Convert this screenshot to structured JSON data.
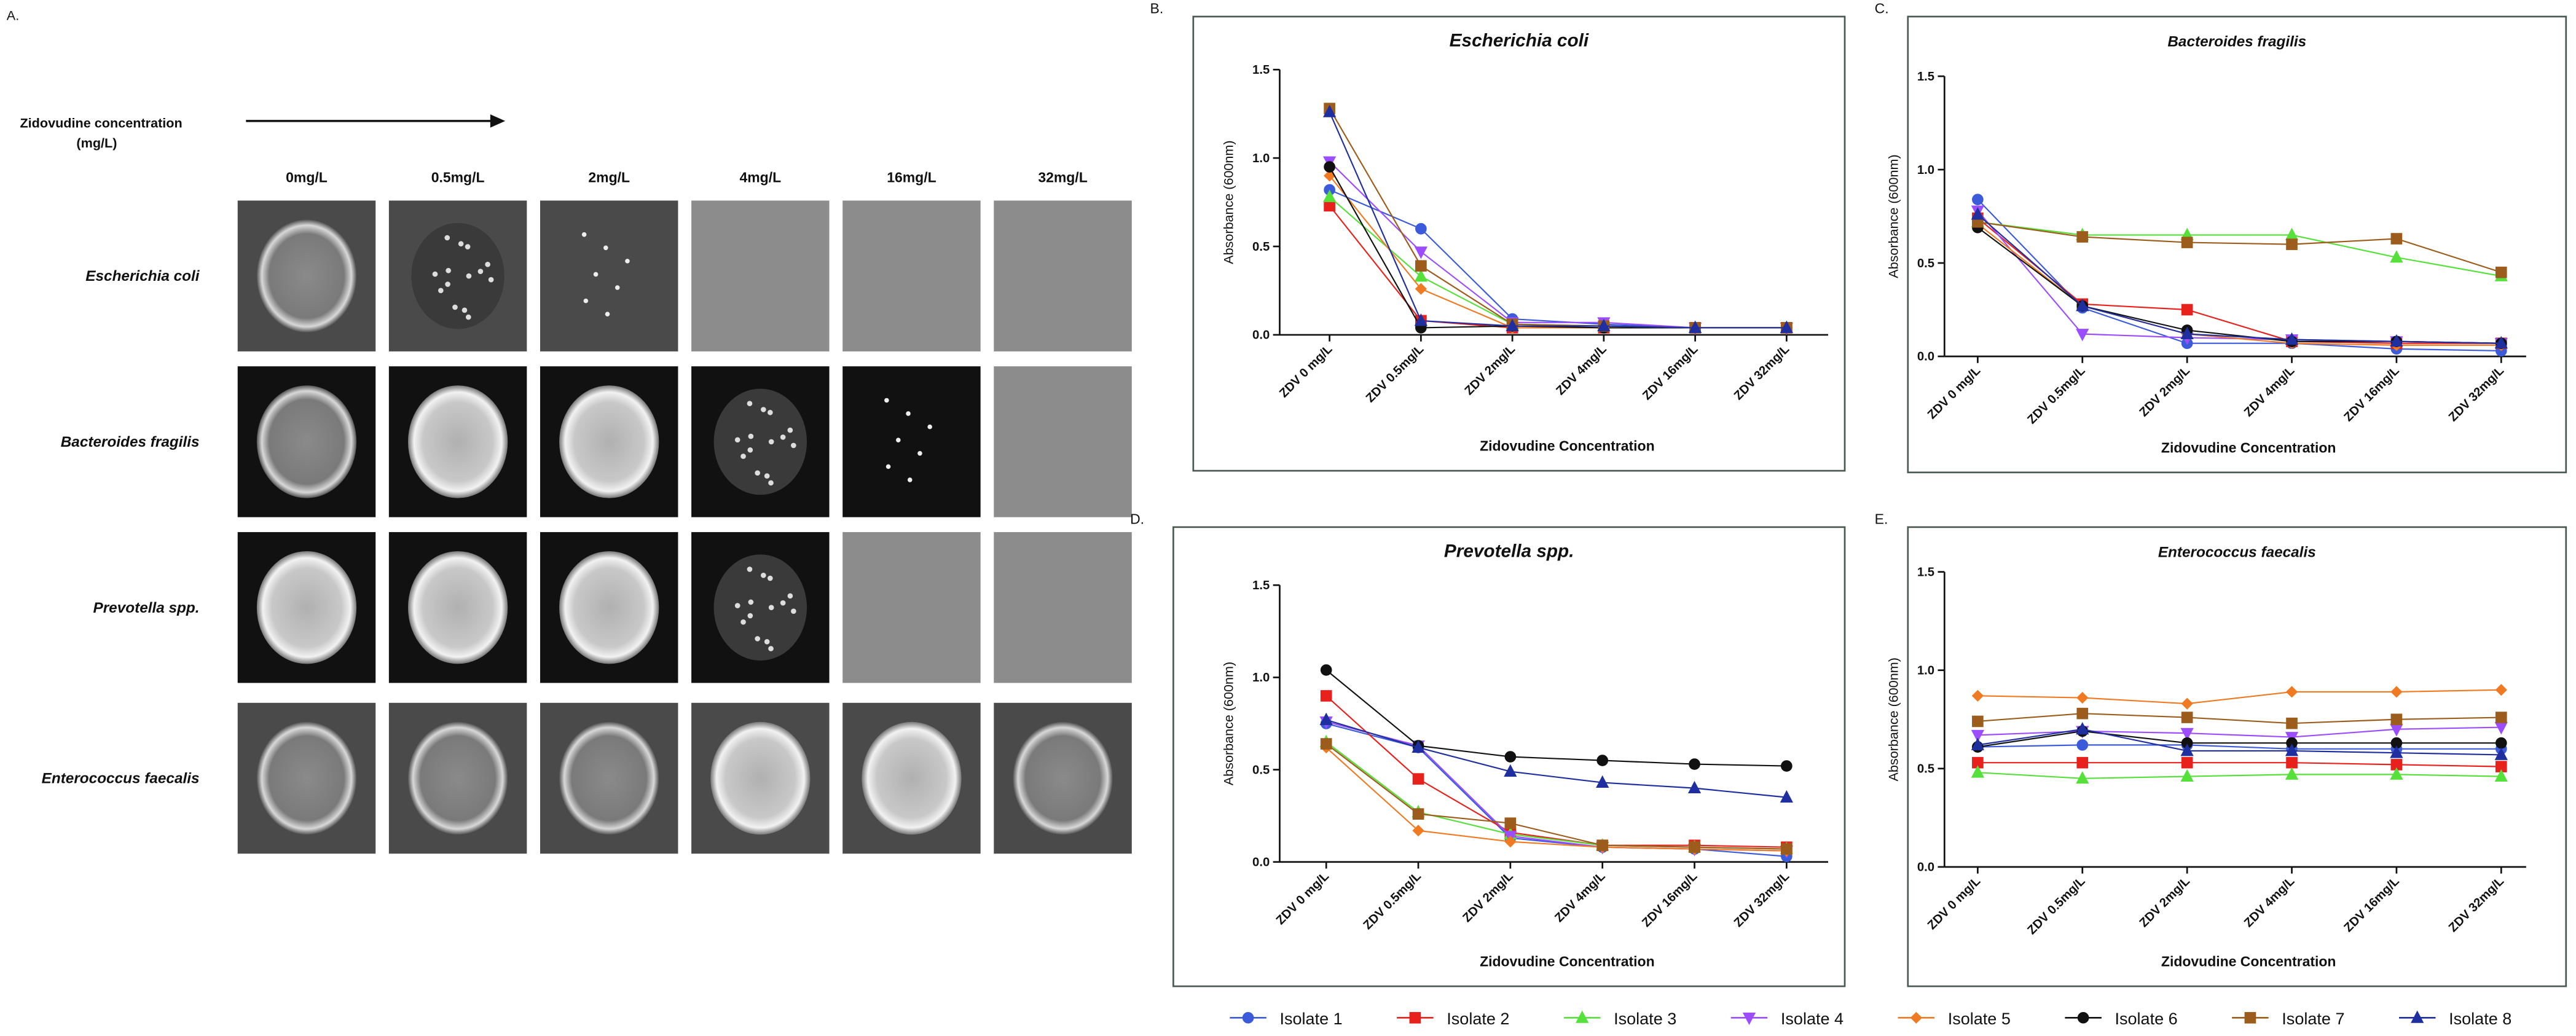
{
  "panel_a": {
    "label": "A.",
    "concentration_label": [
      "Zidovudine concentration",
      "(mg/L)"
    ],
    "columns": [
      "0mg/L",
      "0.5mg/L",
      "2mg/L",
      "4mg/L",
      "16mg/L",
      "32mg/L"
    ],
    "rows": [
      "Escherichia coli",
      "Bacteroides  fragilis",
      "Prevotella spp.",
      "Enterococcus faecalis"
    ]
  },
  "chart_data": [
    {
      "type": "line",
      "label": "B.",
      "title": "Escherichia coli",
      "x_label": "Zidovudine Concentration",
      "y_label": "Absorbance (600nm)",
      "categories": [
        "ZDV 0 mg/L",
        "ZDV 0.5mg/L",
        "ZDV 2mg/L",
        "ZDV 4mg/L",
        "ZDV 16mg/L",
        "ZDV 32mg/L"
      ],
      "ylim": [
        0,
        1.5
      ],
      "yticks": [
        {
          "value": 0,
          "label": "0.0"
        },
        0.5,
        {
          "value": 1,
          "label": "1.0"
        },
        1.5
      ],
      "series": [
        {
          "name": "Isolate 1",
          "color": "#3b5bdb",
          "marker": "circle",
          "values": [
            0.82,
            0.6,
            0.09,
            0.06,
            0.04,
            0.04
          ]
        },
        {
          "name": "Isolate 2",
          "color": "#e8211d",
          "marker": "square",
          "values": [
            0.73,
            0.08,
            0.04,
            0.04,
            0.04,
            0.04
          ]
        },
        {
          "name": "Isolate 3",
          "color": "#55e03a",
          "marker": "triangle",
          "values": [
            0.78,
            0.33,
            0.06,
            0.05,
            0.04,
            0.04
          ]
        },
        {
          "name": "Isolate 4",
          "color": "#9b4dff",
          "marker": "triangle-down",
          "values": [
            0.98,
            0.47,
            0.07,
            0.07,
            0.04,
            0.04
          ]
        },
        {
          "name": "Isolate 5",
          "color": "#f07a22",
          "marker": "diamond",
          "values": [
            0.9,
            0.26,
            0.04,
            0.04,
            0.04,
            0.04
          ]
        },
        {
          "name": "Isolate 6",
          "color": "#111111",
          "marker": "circle",
          "values": [
            0.95,
            0.04,
            0.05,
            0.04,
            0.04,
            0.04
          ]
        },
        {
          "name": "Isolate 7",
          "color": "#9c5d1c",
          "marker": "square",
          "values": [
            1.28,
            0.39,
            0.06,
            0.05,
            0.04,
            0.04
          ]
        },
        {
          "name": "Isolate 8",
          "color": "#1f2fa0",
          "marker": "triangle",
          "values": [
            1.26,
            0.08,
            0.05,
            0.05,
            0.04,
            0.04
          ]
        }
      ]
    },
    {
      "type": "line",
      "label": "C.",
      "title": "Bacteroides fragilis",
      "x_label": "Zidovudine Concentration",
      "y_label": "Absorbance (600nm)",
      "categories": [
        "ZDV 0 mg/L",
        "ZDV 0.5mg/L",
        "ZDV 2mg/L",
        "ZDV 4mg/L",
        "ZDV 16mg/L",
        "ZDV 32mg/L"
      ],
      "ylim": [
        0,
        1.5
      ],
      "yticks": [
        {
          "value": 0,
          "label": "0.0"
        },
        0.5,
        {
          "value": 1,
          "label": "1.0"
        },
        1.5
      ],
      "series": [
        {
          "name": "Isolate 1",
          "color": "#3b5bdb",
          "marker": "circle",
          "values": [
            0.84,
            0.26,
            0.07,
            0.07,
            0.04,
            0.03
          ]
        },
        {
          "name": "Isolate 2",
          "color": "#e8211d",
          "marker": "square",
          "values": [
            0.74,
            0.28,
            0.25,
            0.08,
            0.07,
            0.07
          ]
        },
        {
          "name": "Isolate 3",
          "color": "#55e03a",
          "marker": "triangle",
          "values": [
            0.72,
            0.65,
            0.65,
            0.65,
            0.53,
            0.43
          ]
        },
        {
          "name": "Isolate 4",
          "color": "#9b4dff",
          "marker": "triangle-down",
          "values": [
            0.78,
            0.12,
            0.1,
            0.09,
            0.08,
            0.07
          ]
        },
        {
          "name": "Isolate 5",
          "color": "#f07a22",
          "marker": "diamond",
          "values": [
            0.71,
            0.27,
            0.12,
            0.07,
            0.06,
            0.06
          ]
        },
        {
          "name": "Isolate 6",
          "color": "#111111",
          "marker": "circle",
          "values": [
            0.69,
            0.27,
            0.14,
            0.08,
            0.08,
            0.07
          ]
        },
        {
          "name": "Isolate 7",
          "color": "#9c5d1c",
          "marker": "square",
          "values": [
            0.72,
            0.64,
            0.61,
            0.6,
            0.63,
            0.45
          ]
        },
        {
          "name": "Isolate 8",
          "color": "#1f2fa0",
          "marker": "triangle",
          "values": [
            0.76,
            0.27,
            0.12,
            0.09,
            0.08,
            0.07
          ]
        }
      ]
    },
    {
      "type": "line",
      "label": "D.",
      "title": "Prevotella spp.",
      "x_label": "Zidovudine Concentration",
      "y_label": "Absorbance (600nm)",
      "categories": [
        "ZDV 0 mg/L",
        "ZDV 0.5mg/L",
        "ZDV 2mg/L",
        "ZDV 4mg/L",
        "ZDV 16mg/L",
        "ZDV 32mg/L"
      ],
      "ylim": [
        0,
        1.5
      ],
      "yticks": [
        {
          "value": 0,
          "label": "0.0"
        },
        0.5,
        {
          "value": 1,
          "label": "1.0"
        },
        1.5
      ],
      "series": [
        {
          "name": "Isolate 1",
          "color": "#3b5bdb",
          "marker": "circle",
          "values": [
            0.75,
            0.62,
            0.13,
            0.08,
            0.07,
            0.03
          ]
        },
        {
          "name": "Isolate 2",
          "color": "#e8211d",
          "marker": "square",
          "values": [
            0.9,
            0.45,
            0.16,
            0.09,
            0.09,
            0.08
          ]
        },
        {
          "name": "Isolate 3",
          "color": "#55e03a",
          "marker": "triangle",
          "values": [
            0.65,
            0.27,
            0.15,
            0.09,
            0.08,
            0.07
          ]
        },
        {
          "name": "Isolate 4",
          "color": "#9b4dff",
          "marker": "triangle-down",
          "values": [
            0.76,
            0.63,
            0.14,
            0.08,
            0.07,
            0.06
          ]
        },
        {
          "name": "Isolate 5",
          "color": "#f07a22",
          "marker": "diamond",
          "values": [
            0.62,
            0.17,
            0.11,
            0.08,
            0.07,
            0.06
          ]
        },
        {
          "name": "Isolate 6",
          "color": "#111111",
          "marker": "circle",
          "values": [
            1.04,
            0.63,
            0.57,
            0.55,
            0.53,
            0.52
          ]
        },
        {
          "name": "Isolate 7",
          "color": "#9c5d1c",
          "marker": "square",
          "values": [
            0.64,
            0.26,
            0.21,
            0.09,
            0.08,
            0.07
          ]
        },
        {
          "name": "Isolate 8",
          "color": "#1f2fa0",
          "marker": "triangle",
          "values": [
            0.77,
            0.62,
            0.49,
            0.43,
            0.4,
            0.35
          ]
        }
      ]
    },
    {
      "type": "line",
      "label": "E.",
      "title": "Enterococcus faecalis",
      "x_label": "Zidovudine Concentration",
      "y_label": "Absorbance (600nm)",
      "categories": [
        "ZDV 0 mg/L",
        "ZDV 0.5mg/L",
        "ZDV 2mg/L",
        "ZDV 4mg/L",
        "ZDV 16mg/L",
        "ZDV 32mg/L"
      ],
      "ylim": [
        0,
        1.5
      ],
      "yticks": [
        {
          "value": 0,
          "label": "0.0"
        },
        0.5,
        {
          "value": 1,
          "label": "1.0"
        },
        1.5
      ],
      "series": [
        {
          "name": "Isolate 1",
          "color": "#3b5bdb",
          "marker": "circle",
          "values": [
            0.61,
            0.62,
            0.62,
            0.6,
            0.6,
            0.6
          ]
        },
        {
          "name": "Isolate 2",
          "color": "#e8211d",
          "marker": "square",
          "values": [
            0.53,
            0.53,
            0.53,
            0.53,
            0.52,
            0.51
          ]
        },
        {
          "name": "Isolate 3",
          "color": "#55e03a",
          "marker": "triangle",
          "values": [
            0.48,
            0.45,
            0.46,
            0.47,
            0.47,
            0.46
          ]
        },
        {
          "name": "Isolate 4",
          "color": "#9b4dff",
          "marker": "triangle-down",
          "values": [
            0.67,
            0.69,
            0.68,
            0.66,
            0.7,
            0.71
          ]
        },
        {
          "name": "Isolate 5",
          "color": "#f07a22",
          "marker": "diamond",
          "values": [
            0.87,
            0.86,
            0.83,
            0.89,
            0.89,
            0.9
          ]
        },
        {
          "name": "Isolate 6",
          "color": "#111111",
          "marker": "circle",
          "values": [
            0.61,
            0.69,
            0.63,
            0.63,
            0.63,
            0.63
          ]
        },
        {
          "name": "Isolate 7",
          "color": "#9c5d1c",
          "marker": "square",
          "values": [
            0.74,
            0.78,
            0.76,
            0.73,
            0.75,
            0.76
          ]
        },
        {
          "name": "Isolate 8",
          "color": "#1f2fa0",
          "marker": "triangle",
          "values": [
            0.62,
            0.7,
            0.59,
            0.59,
            0.58,
            0.57
          ]
        }
      ]
    }
  ]
}
